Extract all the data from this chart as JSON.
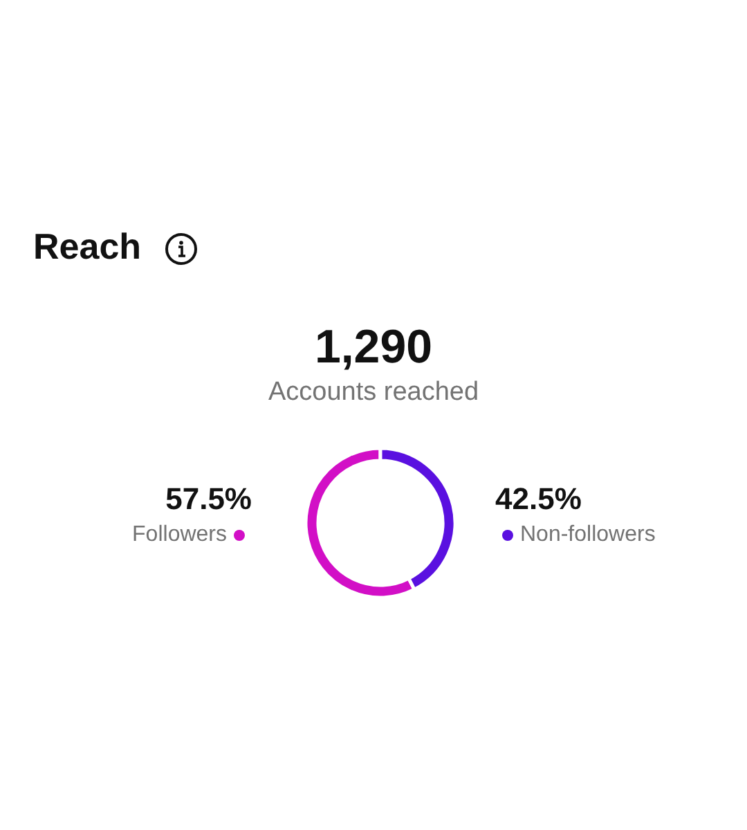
{
  "chart_data": {
    "type": "donut",
    "title": "Reach",
    "annotations": [
      "1,290",
      "Accounts reached"
    ],
    "categories": [
      "Followers",
      "Non-followers"
    ],
    "values": [
      57.5,
      42.5
    ],
    "colors": [
      "#d20fc6",
      "#5a10e0"
    ],
    "value_labels": [
      "57.5%",
      "42.5%"
    ],
    "legend": "right"
  }
}
